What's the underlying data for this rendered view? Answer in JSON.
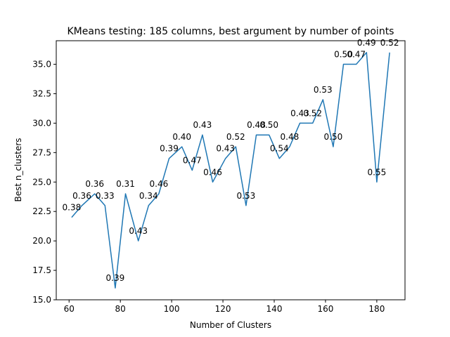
{
  "chart_data": {
    "type": "line",
    "title": "KMeans testing: 185 columns, best argument by number of points",
    "xlabel": "Number of Clusters",
    "ylabel": "Best n_clusters",
    "xlim": [
      55,
      191
    ],
    "ylim": [
      15,
      37
    ],
    "xticks": [
      60,
      80,
      100,
      120,
      140,
      160,
      180
    ],
    "yticks": [
      15.0,
      17.5,
      20.0,
      22.5,
      25.0,
      27.5,
      30.0,
      32.5,
      35.0
    ],
    "xtick_labels": [
      "60",
      "80",
      "100",
      "120",
      "140",
      "160",
      "180"
    ],
    "ytick_labels": [
      "15.0",
      "17.5",
      "20.0",
      "22.5",
      "25.0",
      "27.5",
      "30.0",
      "32.5",
      "35.0"
    ],
    "grid": false,
    "line_color": "#1f77b4",
    "series": [
      {
        "x": [
          61,
          65,
          70,
          74,
          78,
          82,
          87,
          91,
          95,
          99,
          104,
          108,
          112,
          116,
          121,
          125,
          129,
          133,
          138,
          142,
          146,
          150,
          155,
          159,
          163,
          167,
          172,
          176,
          180,
          185
        ],
        "y": [
          22,
          23,
          24,
          23,
          16,
          24,
          20,
          23,
          24,
          27,
          28,
          26,
          29,
          25,
          27,
          28,
          23,
          29,
          29,
          27,
          28,
          30,
          30,
          32,
          28,
          35,
          35,
          36,
          25,
          36
        ],
        "labels": [
          "0.38",
          "0.36",
          "0.36",
          "0.33",
          "0.39",
          "0.31",
          "0.43",
          "0.34",
          "0.46",
          "0.39",
          "0.40",
          "0.47",
          "0.43",
          "0.46",
          "0.43",
          "0.52",
          "0.53",
          "0.48",
          "0.50",
          "0.54",
          "0.48",
          "0.43",
          "0.52",
          "0.53",
          "0.50",
          "0.50",
          "0.47",
          "0.49",
          "0.55",
          "0.52"
        ]
      }
    ]
  }
}
